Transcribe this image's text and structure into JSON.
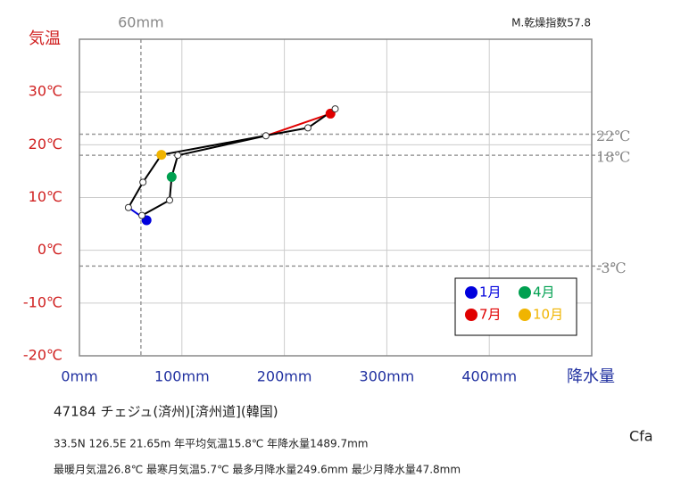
{
  "chart_data": {
    "type": "climograph",
    "top_note": "M.乾燥指数57.8",
    "x_axis_label": "降水量",
    "y_axis_label": "気温",
    "x": [
      65.5,
      61,
      88,
      90,
      96,
      182,
      245,
      249.6,
      223,
      80,
      62,
      47.8
    ],
    "values": [
      5.7,
      6.6,
      9.5,
      13.9,
      18.0,
      21.7,
      25.9,
      26.8,
      23.2,
      18.1,
      12.9,
      8.1
    ],
    "point_colors": [
      "#0000dd",
      null,
      null,
      "#00a050",
      null,
      null,
      "#e00000",
      null,
      null,
      "#f0b400",
      null,
      null
    ],
    "segment_colors": [
      "#000000",
      "#000000",
      "#000000",
      "#000000",
      "#000000",
      "#e00000",
      "#000000",
      "#000000",
      "#000000",
      "#000000",
      "#000000",
      "#0000dd"
    ],
    "legend": [
      {
        "name": "1月",
        "color": "#0000dd"
      },
      {
        "name": "4月",
        "color": "#00a050"
      },
      {
        "name": "7月",
        "color": "#e00000"
      },
      {
        "name": "10月",
        "color": "#f0b400"
      }
    ],
    "xlim": [
      0,
      500
    ],
    "ylim": [
      -20,
      40
    ],
    "xticks": [
      {
        "value": 0,
        "label": "0mm"
      },
      {
        "value": 100,
        "label": "100mm"
      },
      {
        "value": 200,
        "label": "200mm"
      },
      {
        "value": 300,
        "label": "300mm"
      },
      {
        "value": 400,
        "label": "400mm"
      }
    ],
    "yticks": [
      {
        "value": -20,
        "label": "-20℃"
      },
      {
        "value": -10,
        "label": "-10℃"
      },
      {
        "value": 0,
        "label": "0℃"
      },
      {
        "value": 10,
        "label": "10℃"
      },
      {
        "value": 20,
        "label": "20℃"
      },
      {
        "value": 30,
        "label": "30℃"
      }
    ],
    "x_reference_lines": [
      {
        "value": 60,
        "label": "60mm"
      }
    ],
    "y_reference_lines": [
      {
        "value": 22,
        "label": "22℃"
      },
      {
        "value": 18,
        "label": "18℃"
      },
      {
        "value": -3,
        "label": "-3℃"
      }
    ],
    "grid": true,
    "station": "47184  チェジュ(済州)[済州道](韓国)",
    "info_line_1": "33.5N  126.5E 21.65m  年平均気温15.8℃ 年降水量1489.7mm",
    "info_line_2": "最暖月気温26.8℃ 最寒月気温5.7℃ 最多月降水量249.6mm 最少月降水量47.8mm",
    "climate_class": "Cfa"
  }
}
